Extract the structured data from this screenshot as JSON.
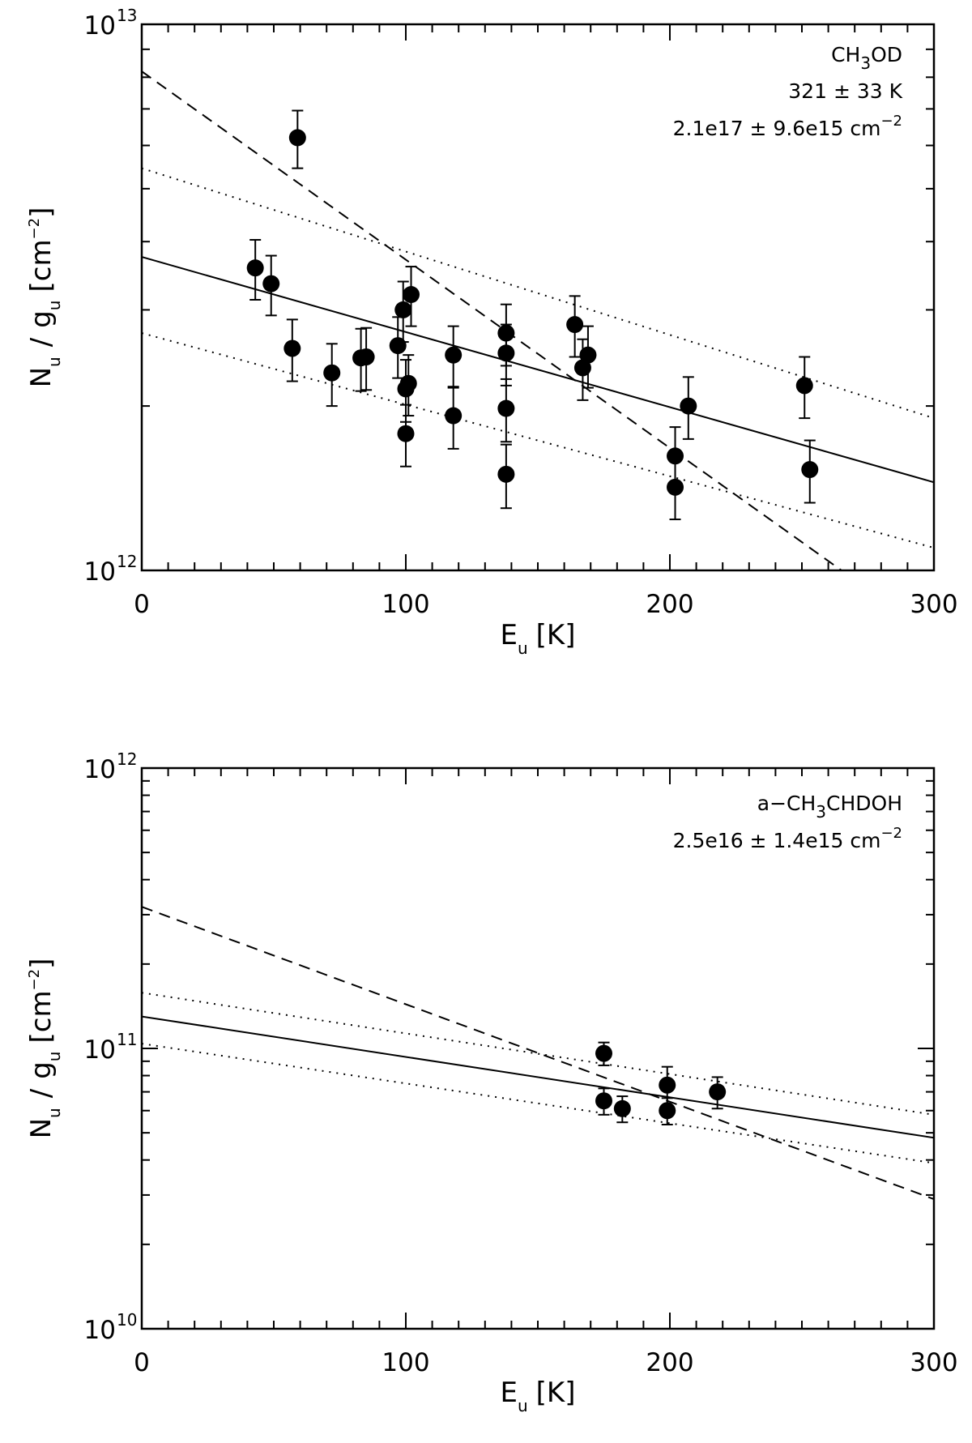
{
  "chart_data": [
    {
      "type": "scatter",
      "title": "",
      "xlabel": "E_u [K]",
      "xlabel_parts": {
        "main": "E",
        "sub": "u",
        "units": "[K]"
      },
      "ylabel_parts": {
        "n": "N",
        "n_sub": "u",
        "slash": "/",
        "g": "g",
        "g_sub": "u",
        "units": "[cm",
        "units_sup": "−2",
        "units_close": "]"
      },
      "xlim": [
        0,
        300
      ],
      "ylim": [
        1000000000000.0,
        10000000000000.0
      ],
      "yscale": "log",
      "x_ticks": [
        0,
        100,
        200,
        300
      ],
      "x_tick_labels": [
        "0",
        "100",
        "200",
        "300"
      ],
      "y_tick_labels": [
        {
          "base": "10",
          "exp": "12",
          "value": 1000000000000.0
        },
        {
          "base": "10",
          "exp": "13",
          "value": 10000000000000.0
        }
      ],
      "annotation": {
        "species": {
          "pre": "CH",
          "sub": "3",
          "post": "OD"
        },
        "temperature": "321 ± 33 K",
        "column_density": {
          "text": "2.1e17 ± 9.6e15 cm",
          "sup": "−2"
        }
      },
      "points": [
        {
          "x": 43,
          "y": 3580000000000.0,
          "err": 450000000000.0
        },
        {
          "x": 49,
          "y": 3350000000000.0,
          "err": 420000000000.0
        },
        {
          "x": 59,
          "y": 6200000000000.0,
          "err": 750000000000.0
        },
        {
          "x": 57,
          "y": 2550000000000.0,
          "err": 330000000000.0
        },
        {
          "x": 72,
          "y": 2300000000000.0,
          "err": 300000000000.0
        },
        {
          "x": 83,
          "y": 2450000000000.0,
          "err": 320000000000.0
        },
        {
          "x": 85,
          "y": 2460000000000.0,
          "err": 320000000000.0
        },
        {
          "x": 97,
          "y": 2580000000000.0,
          "err": 330000000000.0
        },
        {
          "x": 99,
          "y": 3000000000000.0,
          "err": 380000000000.0
        },
        {
          "x": 100,
          "y": 2150000000000.0,
          "err": 280000000000.0
        },
        {
          "x": 101,
          "y": 2200000000000.0,
          "err": 280000000000.0
        },
        {
          "x": 100,
          "y": 1780000000000.0,
          "err": 230000000000.0
        },
        {
          "x": 102,
          "y": 3200000000000.0,
          "err": 400000000000.0
        },
        {
          "x": 118,
          "y": 2480000000000.0,
          "err": 320000000000.0
        },
        {
          "x": 118,
          "y": 1920000000000.0,
          "err": 250000000000.0
        },
        {
          "x": 138,
          "y": 2720000000000.0,
          "err": 350000000000.0
        },
        {
          "x": 138,
          "y": 2500000000000.0,
          "err": 320000000000.0
        },
        {
          "x": 138,
          "y": 1980000000000.0,
          "err": 260000000000.0
        },
        {
          "x": 138,
          "y": 1500000000000.0,
          "err": 200000000000.0
        },
        {
          "x": 164,
          "y": 2820000000000.0,
          "err": 360000000000.0
        },
        {
          "x": 167,
          "y": 2350000000000.0,
          "err": 300000000000.0
        },
        {
          "x": 169,
          "y": 2480000000000.0,
          "err": 320000000000.0
        },
        {
          "x": 202,
          "y": 1620000000000.0,
          "err": 210000000000.0
        },
        {
          "x": 202,
          "y": 1420000000000.0,
          "err": 180000000000.0
        },
        {
          "x": 207,
          "y": 2000000000000.0,
          "err": 260000000000.0
        },
        {
          "x": 251,
          "y": 2180000000000.0,
          "err": 280000000000.0
        },
        {
          "x": 253,
          "y": 1530000000000.0,
          "err": 200000000000.0
        }
      ],
      "lines": [
        {
          "name": "fit",
          "style": "solid",
          "x": [
            0,
            300
          ],
          "y": [
            3750000000000.0,
            1450000000000.0
          ]
        },
        {
          "name": "upper bound",
          "style": "dotted",
          "x": [
            0,
            300
          ],
          "y": [
            5450000000000.0,
            1900000000000.0
          ]
        },
        {
          "name": "lower bound",
          "style": "dotted",
          "x": [
            0,
            300
          ],
          "y": [
            2720000000000.0,
            1100000000000.0
          ]
        },
        {
          "name": "comparison",
          "style": "dashed",
          "x": [
            0,
            265
          ],
          "y": [
            8200000000000.0,
            1000000000000.0
          ]
        }
      ]
    },
    {
      "type": "scatter",
      "title": "",
      "xlabel": "E_u [K]",
      "xlabel_parts": {
        "main": "E",
        "sub": "u",
        "units": "[K]"
      },
      "ylabel_parts": {
        "n": "N",
        "n_sub": "u",
        "slash": "/",
        "g": "g",
        "g_sub": "u",
        "units": "[cm",
        "units_sup": "−2",
        "units_close": "]"
      },
      "xlim": [
        0,
        300
      ],
      "ylim": [
        10000000000.0,
        1000000000000.0
      ],
      "yscale": "log",
      "x_ticks": [
        0,
        100,
        200,
        300
      ],
      "x_tick_labels": [
        "0",
        "100",
        "200",
        "300"
      ],
      "y_tick_labels": [
        {
          "base": "10",
          "exp": "10",
          "value": 10000000000.0
        },
        {
          "base": "10",
          "exp": "11",
          "value": 100000000000.0
        },
        {
          "base": "10",
          "exp": "12",
          "value": 1000000000000.0
        }
      ],
      "annotation": {
        "species": {
          "pre": "a−CH",
          "sub": "3",
          "post": "CHDOH"
        },
        "column_density": {
          "text": "2.5e16 ± 1.4e15 cm",
          "sup": "−2"
        }
      },
      "points": [
        {
          "x": 175,
          "y": 96000000000.0,
          "err": 9000000000.0
        },
        {
          "x": 175,
          "y": 65000000000.0,
          "err": 7000000000.0
        },
        {
          "x": 182,
          "y": 61000000000.0,
          "err": 6500000000.0
        },
        {
          "x": 199,
          "y": 74000000000.0,
          "err": 12000000000.0
        },
        {
          "x": 199,
          "y": 60000000000.0,
          "err": 6500000000.0
        },
        {
          "x": 218,
          "y": 70000000000.0,
          "err": 9000000000.0
        }
      ],
      "lines": [
        {
          "name": "fit",
          "style": "solid",
          "x": [
            0,
            300
          ],
          "y": [
            130000000000.0,
            48000000000.0
          ]
        },
        {
          "name": "upper bound",
          "style": "dotted",
          "x": [
            0,
            300
          ],
          "y": [
            158000000000.0,
            58000000000.0
          ]
        },
        {
          "name": "lower bound",
          "style": "dotted",
          "x": [
            0,
            300
          ],
          "y": [
            104000000000.0,
            39000000000.0
          ]
        },
        {
          "name": "comparison",
          "style": "dashed",
          "x": [
            0,
            300
          ],
          "y": [
            320000000000.0,
            29000000000.0
          ]
        }
      ]
    }
  ]
}
